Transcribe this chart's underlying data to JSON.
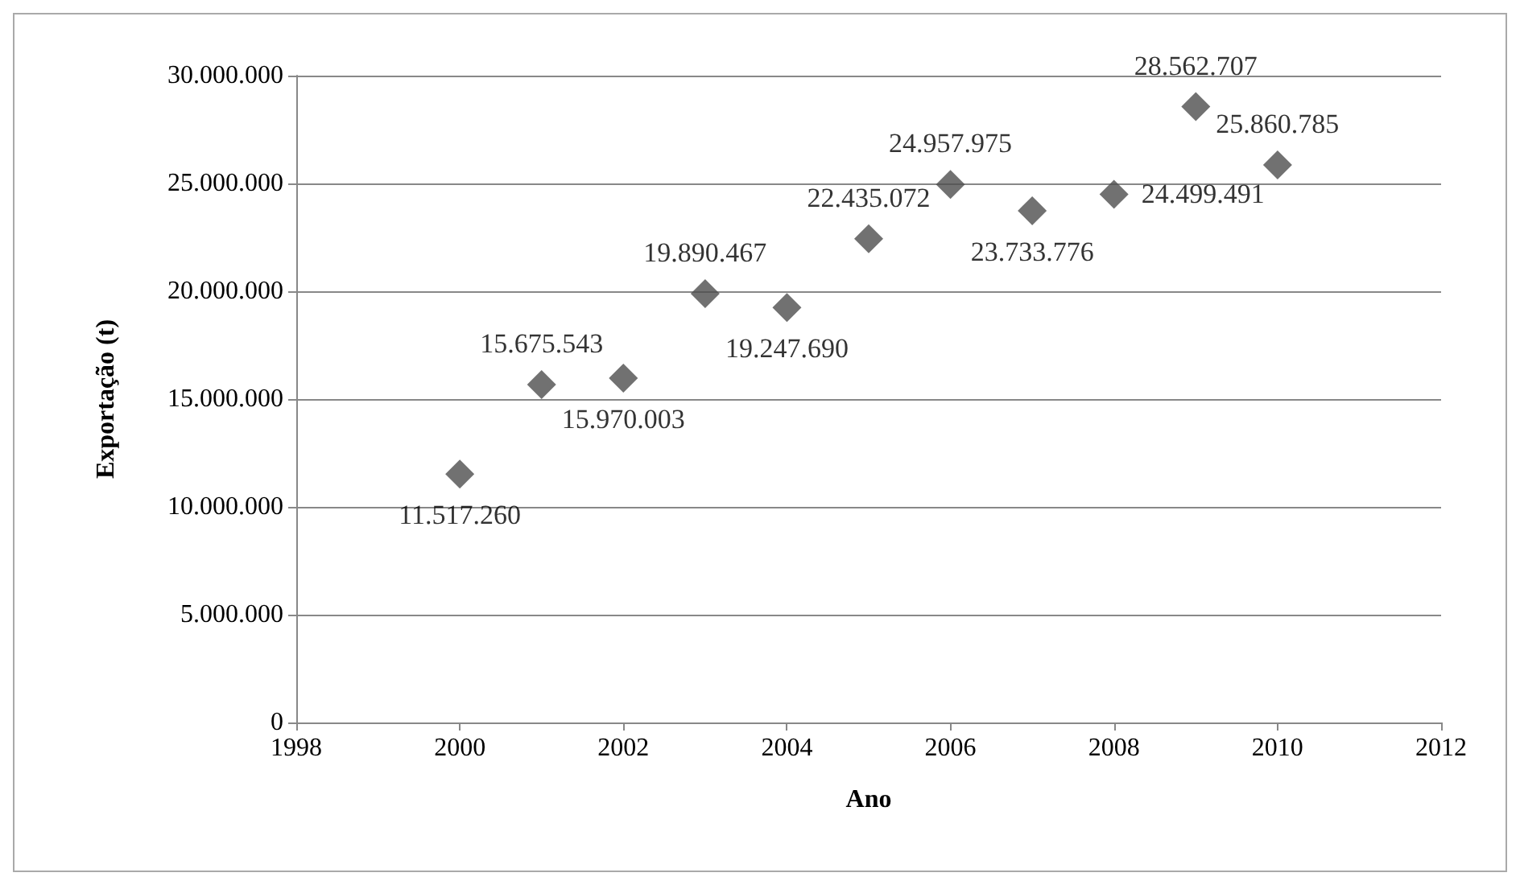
{
  "chart_data": {
    "type": "scatter",
    "xlabel": "Ano",
    "ylabel": "Exportação (t)",
    "x": [
      2000,
      2001,
      2002,
      2003,
      2004,
      2005,
      2006,
      2007,
      2008,
      2009,
      2010
    ],
    "series": [
      {
        "color": "#4d4d4d",
        "values": [
          11517260,
          15675543,
          15970003,
          19890467,
          19247690,
          22435072,
          24957975,
          23733776,
          24499491,
          28562707,
          25860785
        ],
        "value_labels": [
          "11.517.260",
          "15.675.543",
          "15.970.003",
          "19.890.467",
          "19.247.690",
          "22.435.072",
          "24.957.975",
          "23.733.776",
          "24.499.491",
          "28.562.707",
          "25.860.785"
        ]
      }
    ],
    "xlim": [
      1998,
      2012
    ],
    "xticks": [
      1998,
      2000,
      2002,
      2004,
      2006,
      2008,
      2010,
      2012
    ],
    "ylim": [
      0,
      30000000
    ],
    "yticks": [
      0,
      {
        "value": 5000000,
        "label": "5.000.000"
      },
      {
        "value": 10000000,
        "label": "10.000.000"
      },
      {
        "value": 15000000,
        "label": "15.000.000"
      },
      {
        "value": 20000000,
        "label": "20.000.000"
      },
      {
        "value": 25000000,
        "label": "25.000.000"
      },
      {
        "value": 30000000,
        "label": "30.000.000"
      }
    ],
    "grid": "y",
    "marker": "diamond"
  }
}
